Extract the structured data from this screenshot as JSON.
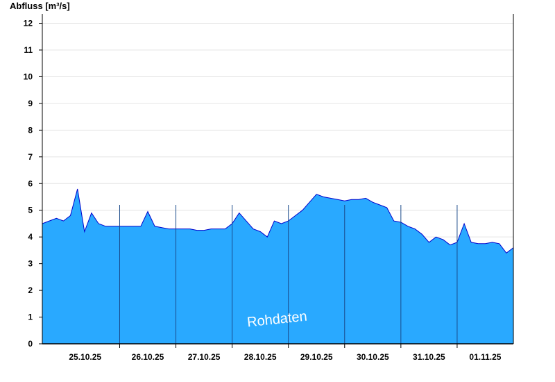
{
  "chart_data": {
    "type": "area",
    "title": "",
    "ylabel": "Abfluss [m³/s]",
    "xlabel": "",
    "ylim": [
      0,
      12.3
    ],
    "yticks": [
      0,
      1,
      2,
      3,
      4,
      5,
      6,
      7,
      8,
      9,
      10,
      11,
      12
    ],
    "xlim": [
      "2025-10-24 11:00",
      "2025-11-01 20:00"
    ],
    "day_separators": [
      "25.10.25 20:00",
      "26.10.25 20:00",
      "27.10.25 20:00",
      "28.10.25 20:00",
      "29.10.25 20:00",
      "30.10.25 20:00",
      "31.10.25 20:00"
    ],
    "xtick_labels": [
      "25.10.25",
      "26.10.25",
      "27.10.25",
      "28.10.25",
      "29.10.25",
      "30.10.25",
      "31.10.25",
      "01.11.25"
    ],
    "grid": true,
    "watermark": "Rohdaten",
    "colors": {
      "fill": "#29a9ff",
      "line": "#0000cc",
      "grid": "#e4e4e4",
      "axis": "#000000"
    },
    "series": [
      {
        "x": [
          "24.10.25 11:00",
          "24.10.25 14:00",
          "24.10.25 17:00",
          "24.10.25 20:00",
          "24.10.25 23:00",
          "25.10.25 02:00",
          "25.10.25 05:00",
          "25.10.25 08:00",
          "25.10.25 11:00",
          "25.10.25 14:00",
          "25.10.25 17:00",
          "25.10.25 20:00",
          "25.10.25 23:00",
          "26.10.25 02:00",
          "26.10.25 05:00",
          "26.10.25 08:00",
          "26.10.25 11:00",
          "26.10.25 14:00",
          "26.10.25 17:00",
          "26.10.25 20:00",
          "26.10.25 23:00",
          "27.10.25 02:00",
          "27.10.25 05:00",
          "27.10.25 08:00",
          "27.10.25 11:00",
          "27.10.25 14:00",
          "27.10.25 17:00",
          "27.10.25 20:00",
          "27.10.25 23:00",
          "28.10.25 02:00",
          "28.10.25 05:00",
          "28.10.25 08:00",
          "28.10.25 11:00",
          "28.10.25 14:00",
          "28.10.25 17:00",
          "28.10.25 20:00",
          "28.10.25 23:00",
          "29.10.25 02:00",
          "29.10.25 05:00",
          "29.10.25 08:00",
          "29.10.25 11:00",
          "29.10.25 14:00",
          "29.10.25 17:00",
          "29.10.25 20:00",
          "29.10.25 23:00",
          "30.10.25 02:00",
          "30.10.25 05:00",
          "30.10.25 08:00",
          "30.10.25 11:00",
          "30.10.25 14:00",
          "30.10.25 17:00",
          "30.10.25 20:00",
          "30.10.25 23:00",
          "31.10.25 02:00",
          "31.10.25 05:00",
          "31.10.25 08:00",
          "31.10.25 11:00",
          "31.10.25 14:00",
          "31.10.25 17:00",
          "31.10.25 20:00",
          "31.10.25 23:00",
          "01.11.25 02:00",
          "01.11.25 05:00",
          "01.11.25 08:00",
          "01.11.25 11:00",
          "01.11.25 14:00",
          "01.11.25 17:00",
          "01.11.25 20:00"
        ],
        "values": [
          4.5,
          4.6,
          4.7,
          4.6,
          4.8,
          5.8,
          4.2,
          4.9,
          4.5,
          4.4,
          4.4,
          4.4,
          4.4,
          4.4,
          4.4,
          4.95,
          4.4,
          4.35,
          4.3,
          4.3,
          4.3,
          4.3,
          4.25,
          4.25,
          4.3,
          4.3,
          4.3,
          4.5,
          4.9,
          4.6,
          4.3,
          4.2,
          4.0,
          4.6,
          4.5,
          4.6,
          4.8,
          5.0,
          5.3,
          5.6,
          5.5,
          5.45,
          5.4,
          5.35,
          5.4,
          5.4,
          5.45,
          5.3,
          5.2,
          5.1,
          4.6,
          4.55,
          4.4,
          4.3,
          4.1,
          3.8,
          4.0,
          3.9,
          3.7,
          3.8,
          4.5,
          3.8,
          3.75,
          3.75,
          3.8,
          3.75,
          3.4,
          3.6
        ]
      }
    ]
  }
}
